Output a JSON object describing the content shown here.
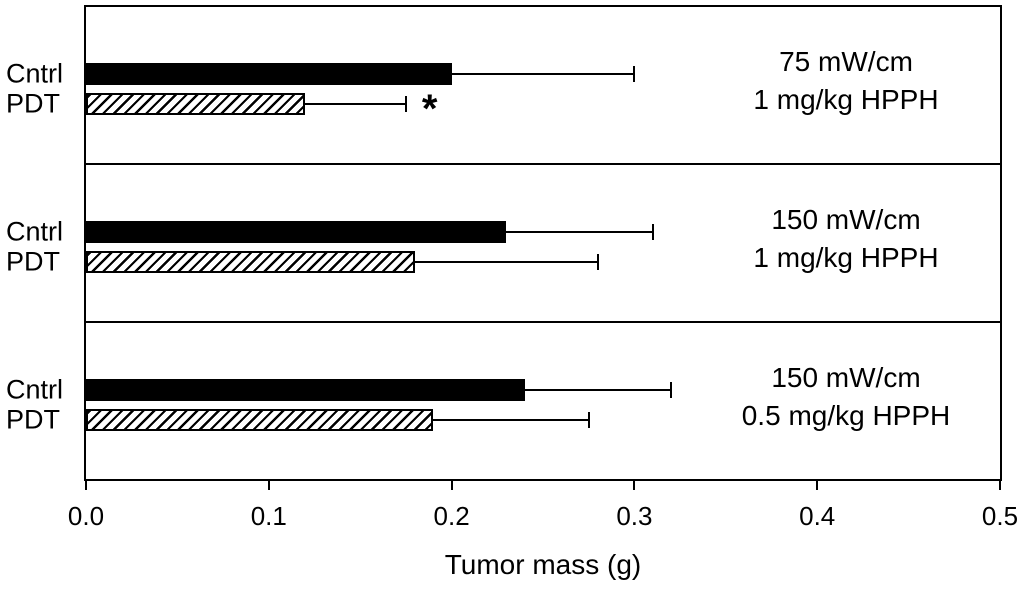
{
  "figure": {
    "background": "#ffffff",
    "line_color": "#000000"
  },
  "chart_data": {
    "type": "bar",
    "orientation": "horizontal",
    "xlabel": "Tumor mass (g)",
    "xlim": [
      0,
      0.5
    ],
    "xticks": [
      "0.0",
      "0.1",
      "0.2",
      "0.3",
      "0.4",
      "0.5"
    ],
    "grid": false,
    "legend": "none",
    "bar_styles": {
      "Cntrl": "solid black fill",
      "PDT": "white fill with black diagonal hatch"
    },
    "panels": [
      {
        "condition_lines": [
          "75 mW/cm",
          "1 mg/kg HPPH"
        ],
        "bars": [
          {
            "label": "Cntrl",
            "value": 0.2,
            "error_upper": 0.3,
            "style": "solid"
          },
          {
            "label": "PDT",
            "value": 0.12,
            "error_upper": 0.175,
            "style": "hatched",
            "annotation": "*"
          }
        ]
      },
      {
        "condition_lines": [
          "150 mW/cm",
          "1 mg/kg HPPH"
        ],
        "bars": [
          {
            "label": "Cntrl",
            "value": 0.23,
            "error_upper": 0.31,
            "style": "solid"
          },
          {
            "label": "PDT",
            "value": 0.18,
            "error_upper": 0.28,
            "style": "hatched"
          }
        ]
      },
      {
        "condition_lines": [
          "150 mW/cm",
          "0.5 mg/kg HPPH"
        ],
        "bars": [
          {
            "label": "Cntrl",
            "value": 0.24,
            "error_upper": 0.32,
            "style": "solid"
          },
          {
            "label": "PDT",
            "value": 0.19,
            "error_upper": 0.275,
            "style": "hatched"
          }
        ]
      }
    ]
  }
}
